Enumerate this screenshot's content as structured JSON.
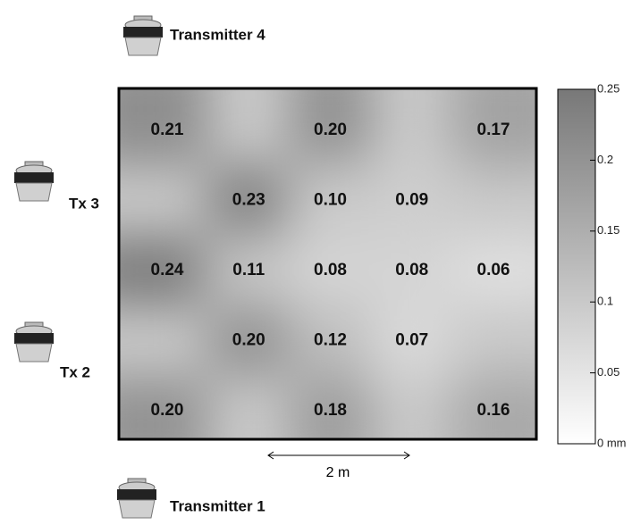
{
  "chart_data": {
    "type": "heatmap",
    "values": [
      [
        0.21,
        null,
        0.2,
        null,
        0.17
      ],
      [
        null,
        0.23,
        0.1,
        0.09,
        null
      ],
      [
        0.24,
        0.11,
        0.08,
        0.08,
        0.06
      ],
      [
        null,
        0.2,
        0.12,
        0.07,
        null
      ],
      [
        0.2,
        null,
        0.18,
        null,
        0.16
      ]
    ],
    "value_labels": [
      [
        "0.21",
        null,
        "0.20",
        null,
        "0.17"
      ],
      [
        null,
        "0.23",
        "0.10",
        "0.09",
        null
      ],
      [
        "0.24",
        "0.11",
        "0.08",
        "0.08",
        "0.06"
      ],
      [
        null,
        "0.20",
        "0.12",
        "0.07",
        null
      ],
      [
        "0.20",
        null,
        "0.18",
        null,
        "0.16"
      ]
    ],
    "colormap": [
      "#ffffff",
      "#787878"
    ],
    "ylim": [
      0,
      0.25
    ],
    "yticks": [
      {
        "value": 0,
        "label": "0 mm"
      },
      0.05,
      0.1,
      0.15,
      0.2,
      0.25
    ],
    "annotations": [
      "Transmitter 4",
      "Tx 3",
      "Tx 2",
      "Transmitter 1"
    ],
    "scale_label": "2 m"
  }
}
